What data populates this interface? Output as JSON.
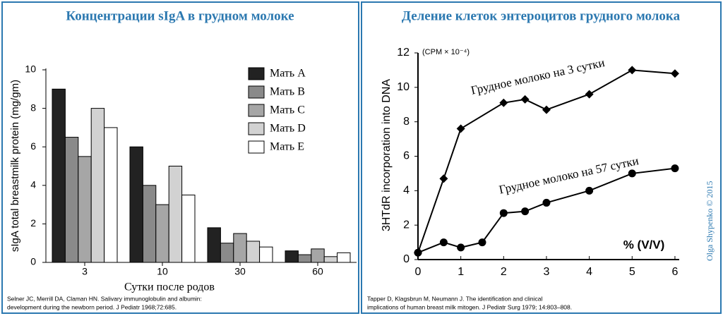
{
  "chart_data": [
    {
      "type": "bar",
      "title": "Концентрации sIgA в грудном молоке",
      "y_label": "sIgA total breastmilk protein (mg/gm)",
      "x_label": "Сутки после родов",
      "categories": [
        "3",
        "10",
        "30",
        "60"
      ],
      "series": [
        {
          "name": "Мать A",
          "color": "#222222",
          "values": [
            9,
            6,
            1.8,
            0.6
          ]
        },
        {
          "name": "Мать B",
          "color": "#8a8a8a",
          "values": [
            6.5,
            4,
            1,
            0.4
          ]
        },
        {
          "name": "Мать C",
          "color": "#a6a6a6",
          "values": [
            5.5,
            3,
            1.5,
            0.7
          ]
        },
        {
          "name": "Мать D",
          "color": "#d2d2d2",
          "values": [
            8,
            5,
            1.1,
            0.3
          ]
        },
        {
          "name": "Мать E",
          "color": "#ffffff",
          "values": [
            7,
            3.5,
            0.8,
            0.5
          ]
        }
      ],
      "ylim": [
        0,
        10
      ],
      "yticks": [
        0,
        2,
        4,
        6,
        8,
        10
      ],
      "source": [
        "Selner JC, Merrill DA, Claman HN. Salivary immunoglobulin and albumin:",
        "development during the newborn period. J Pediatr 1968;72:685."
      ]
    },
    {
      "type": "line",
      "title": "Деление клеток энтероцитов грудного молока",
      "y_label": "3HTdR incorporation into DNA",
      "y_unit": "(CPM × 10⁻⁴)",
      "x_label": "% (V/V)",
      "series": [
        {
          "name": "Грудное молоко на 3 сутки",
          "color": "#000000",
          "marker": "diamond",
          "x": [
            0,
            0.6,
            1,
            2,
            2.5,
            3,
            4,
            5,
            6
          ],
          "values": [
            0.4,
            4.7,
            7.6,
            9.1,
            9.3,
            8.7,
            9.6,
            11,
            10.8
          ]
        },
        {
          "name": "Грудное молоко на 57 сутки",
          "color": "#000000",
          "marker": "circle",
          "x": [
            0,
            0.6,
            1,
            1.5,
            2,
            2.5,
            3,
            4,
            5,
            6
          ],
          "values": [
            0.4,
            1,
            0.7,
            1,
            2.7,
            2.8,
            3.3,
            4,
            5,
            5.3
          ]
        }
      ],
      "xlim": [
        0,
        6.1
      ],
      "xticks": [
        0,
        1,
        2,
        3,
        4,
        5,
        6
      ],
      "ylim": [
        0,
        12
      ],
      "yticks": [
        0,
        2,
        4,
        6,
        8,
        10,
        12
      ],
      "source": [
        "Tapper D, Klagsbrun M, Neumann J. The identification and clinical",
        "implications of human breast milk mitogen. J Pediatr Surg 1979; 14:803–808."
      ]
    }
  ],
  "watermark": "Olga Shypenko © 2015"
}
